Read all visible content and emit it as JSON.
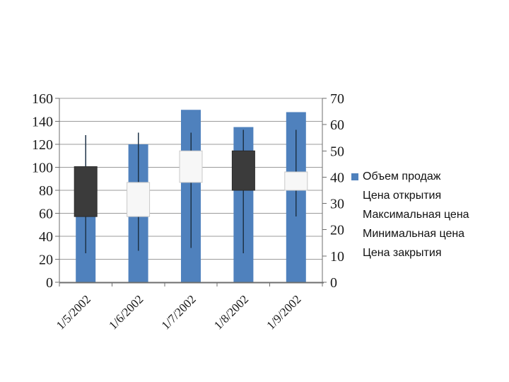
{
  "slide": {
    "background": "#ffffff"
  },
  "chart_data": {
    "type": "stock_vohlc",
    "title": "",
    "categories": [
      "1/5/2002",
      "1/6/2002",
      "1/7/2002",
      "1/8/2002",
      "1/9/2002"
    ],
    "series": [
      {
        "name": "Объем продаж",
        "type": "column",
        "axis": "left",
        "values": [
          100,
          120,
          150,
          135,
          148
        ]
      },
      {
        "name": "Цена открытия",
        "type": "stock",
        "axis": "right",
        "values": [
          44,
          25,
          38,
          50,
          35
        ]
      },
      {
        "name": "Максимальная цена",
        "type": "stock",
        "axis": "right",
        "values": [
          56,
          57,
          57,
          58,
          58
        ]
      },
      {
        "name": "Минимальная цена",
        "type": "stock",
        "axis": "right",
        "values": [
          11,
          12,
          13,
          11,
          25
        ]
      },
      {
        "name": "Цена закрытия",
        "type": "stock",
        "axis": "right",
        "values": [
          25,
          38,
          50,
          35,
          42
        ]
      }
    ],
    "left_axis": {
      "min": 0,
      "max": 160,
      "step": 20
    },
    "right_axis": {
      "min": 0,
      "max": 70,
      "step": 10
    },
    "gridlines": "horizontal-major-left-axis",
    "legend_position": "right",
    "colors": {
      "volume_fill": "#4F81BD",
      "up_fill": "#F7F7F7",
      "up_border": "#C9C9C9",
      "down_fill": "#3B3B3B",
      "down_border": "#2B2B2B",
      "wick": "#1E3348",
      "gridline": "#9B9B9B",
      "axis_line": "#6E6E6E",
      "text": "#1a1a1a"
    }
  }
}
